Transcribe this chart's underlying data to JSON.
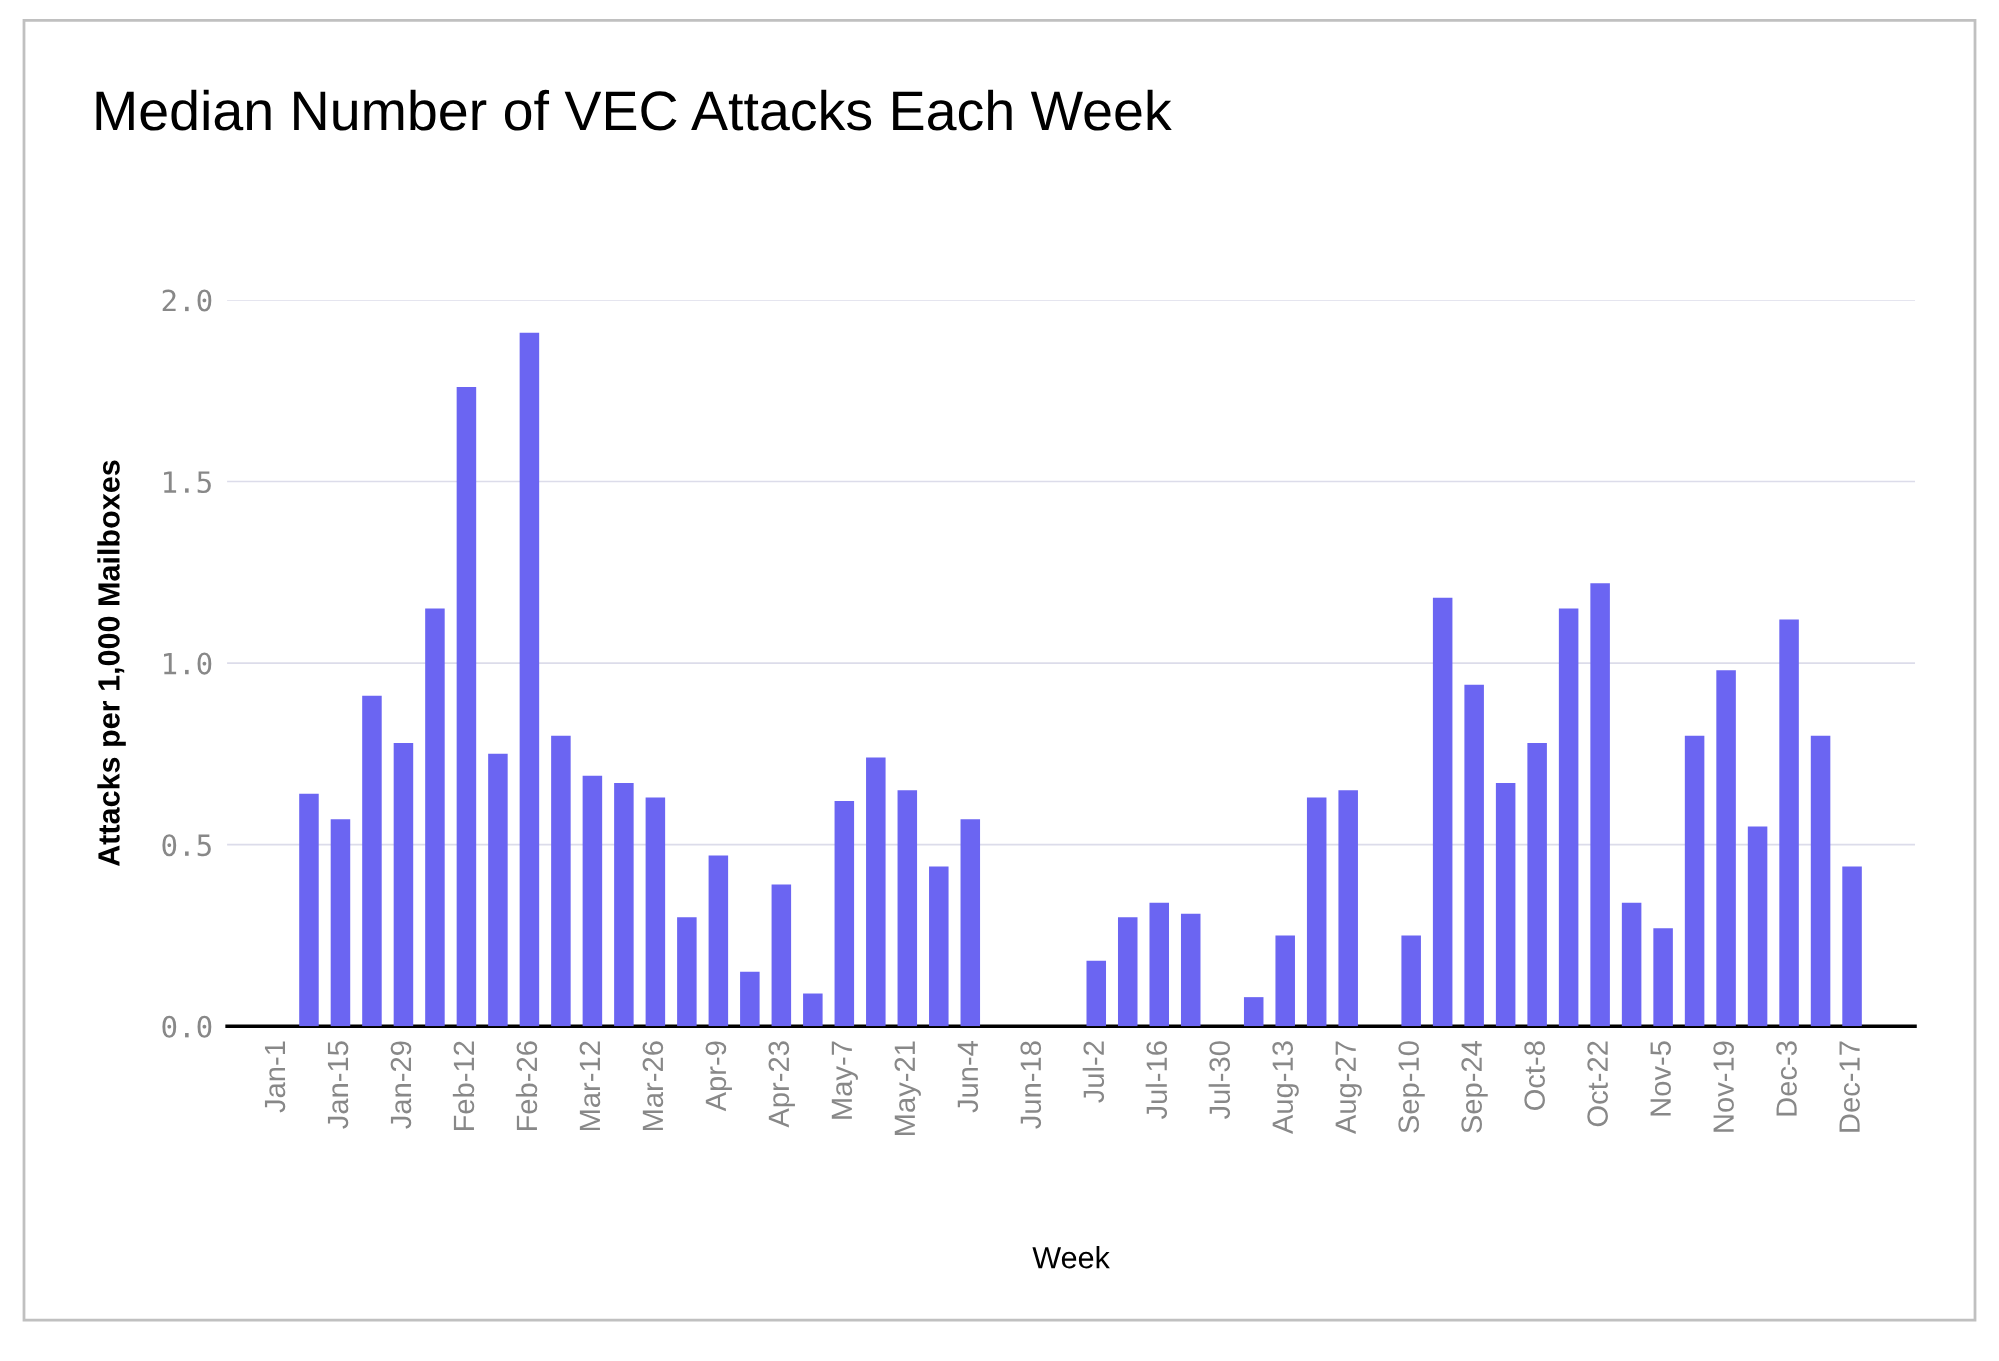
{
  "chart_data": {
    "type": "bar",
    "title": "Median Number of VEC Attacks Each Week",
    "xlabel": "Week",
    "ylabel": "Attacks per 1,000 Mailboxes",
    "categories": [
      "Jan-1",
      null,
      "Jan-15",
      null,
      "Jan-29",
      null,
      "Feb-12",
      null,
      "Feb-26",
      null,
      "Mar-12",
      null,
      "Mar-26",
      null,
      "Apr-9",
      null,
      "Apr-23",
      null,
      "May-7",
      null,
      "May-21",
      null,
      "Jun-4",
      null,
      "Jun-18",
      null,
      "Jul-2",
      null,
      "Jul-16",
      null,
      "Jul-30",
      null,
      "Aug-13",
      null,
      "Aug-27",
      null,
      "Sep-10",
      null,
      "Sep-24",
      null,
      "Oct-8",
      null,
      "Oct-22",
      null,
      "Nov-5",
      null,
      "Nov-19",
      null,
      "Dec-3",
      null,
      "Dec-17"
    ],
    "values": [
      null,
      0.64,
      0.57,
      0.91,
      0.78,
      1.15,
      1.76,
      0.75,
      1.91,
      0.8,
      0.69,
      0.67,
      0.63,
      0.3,
      0.47,
      0.15,
      0.39,
      0.09,
      0.62,
      0.74,
      0.65,
      0.44,
      0.57,
      null,
      null,
      null,
      0.18,
      0.3,
      0.34,
      0.31,
      null,
      0.08,
      0.25,
      0.63,
      0.65,
      null,
      0.25,
      1.18,
      0.94,
      0.67,
      0.78,
      1.15,
      1.22,
      0.34,
      0.27,
      0.8,
      0.98,
      0.55,
      1.12,
      0.8,
      0.44
    ],
    "color": "#6b65f2",
    "ylim": [
      0,
      2.0
    ],
    "yticks": [
      {
        "value": 0,
        "label": "0.0"
      },
      {
        "value": 0.5,
        "label": "0.5"
      },
      {
        "value": 1.0,
        "label": "1.0"
      },
      {
        "value": 1.5,
        "label": "1.5"
      },
      {
        "value": 2.0,
        "label": "2.0"
      }
    ],
    "grid": "y",
    "legend": false
  }
}
